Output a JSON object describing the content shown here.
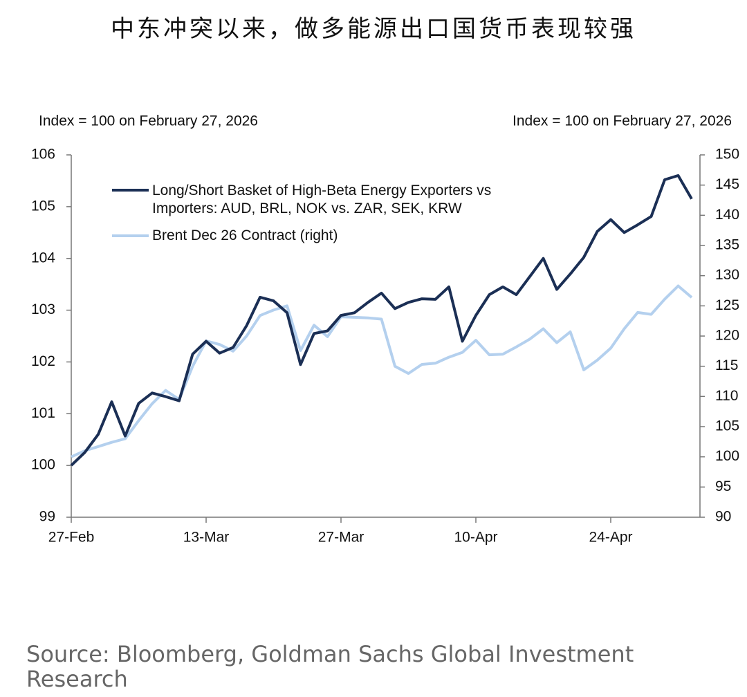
{
  "chart_data": {
    "type": "line",
    "title": "中东冲突以来，做多能源出口国货币表现较强",
    "y_label": "Index = 100 on February 27, 2026",
    "y2_label": "Index = 100 on February 27, 2026",
    "source": "Source: Bloomberg, Goldman Sachs Global Investment Research",
    "categories": [
      "27-Feb",
      null,
      null,
      null,
      null,
      null,
      null,
      null,
      null,
      null,
      "13-Mar",
      null,
      null,
      null,
      null,
      null,
      null,
      null,
      null,
      null,
      "27-Mar",
      null,
      null,
      null,
      null,
      null,
      null,
      null,
      null,
      null,
      "10-Apr",
      null,
      null,
      null,
      null,
      null,
      null,
      null,
      null,
      null,
      "24-Apr",
      null,
      null,
      null,
      null,
      null,
      null
    ],
    "series": [
      {
        "name": "Long/Short Basket of High-Beta Energy Exporters vs Importers: AUD, BRL, NOK vs. ZAR, SEK, KRW",
        "color": "#1b2f55",
        "axis": "y",
        "values": [
          100.0,
          100.25,
          100.6,
          101.23,
          100.57,
          101.2,
          101.4,
          101.33,
          101.25,
          102.15,
          102.4,
          102.17,
          102.28,
          102.7,
          103.25,
          103.18,
          102.95,
          101.95,
          102.55,
          102.6,
          102.9,
          102.95,
          103.15,
          103.33,
          103.03,
          103.15,
          103.22,
          103.21,
          103.45,
          102.4,
          102.9,
          103.3,
          103.45,
          103.3,
          103.65,
          104.0,
          103.4,
          103.7,
          104.02,
          104.52,
          104.75,
          104.5,
          104.65,
          104.81,
          105.52,
          105.6,
          105.15
        ]
      },
      {
        "name": "Brent Dec 26 Contract (right)",
        "color": "#b4d0ee",
        "axis": "y2",
        "values": [
          100,
          101,
          101.7,
          102.4,
          103,
          106,
          108.8,
          111,
          109.5,
          115,
          119.2,
          118.6,
          117.5,
          120,
          123.4,
          124.3,
          125,
          117.6,
          121.8,
          119.9,
          123.2,
          123.1,
          123,
          122.8,
          115,
          113.8,
          115.3,
          115.5,
          116.5,
          117.3,
          119.3,
          116.9,
          117,
          118.2,
          119.5,
          121.2,
          118.9,
          120.7,
          114.4,
          116,
          118,
          121.2,
          123.9,
          123.6,
          126.1,
          128.3,
          126.4
        ]
      }
    ],
    "ylim": [
      99,
      106
    ],
    "yticks": [
      99,
      100,
      101,
      102,
      103,
      104,
      105,
      106
    ],
    "y2lim": [
      90,
      150
    ],
    "y2ticks": [
      90,
      95,
      100,
      105,
      110,
      115,
      120,
      125,
      130,
      135,
      140,
      145,
      150
    ],
    "grid": false
  }
}
